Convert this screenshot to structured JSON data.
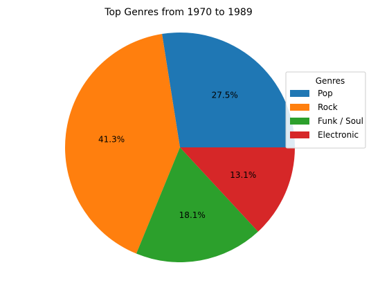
{
  "chart_data": {
    "type": "pie",
    "title": "Top Genres from 1970 to 1989",
    "legend_title": "Genres",
    "legend_placement": "right",
    "start_angle_deg": 0,
    "direction": "counterclockwise",
    "slices": [
      {
        "label": "Pop",
        "value": 27.5,
        "value_label": "27.5%",
        "color": "#1f77b4"
      },
      {
        "label": "Rock",
        "value": 41.3,
        "value_label": "41.3%",
        "color": "#ff7f0e"
      },
      {
        "label": "Funk / Soul",
        "value": 18.1,
        "value_label": "18.1%",
        "color": "#2ca02c"
      },
      {
        "label": "Electronic",
        "value": 13.1,
        "value_label": "13.1%",
        "color": "#d62728"
      }
    ]
  }
}
